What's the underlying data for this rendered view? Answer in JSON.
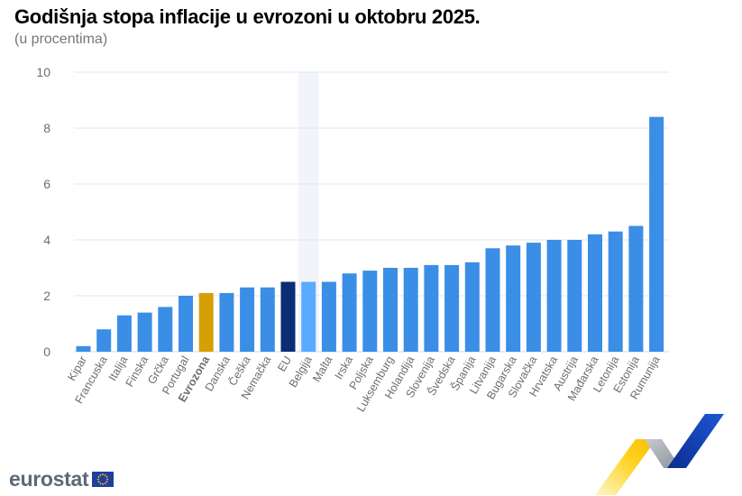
{
  "title": "Godišnja stopa inflacije u evrozoni u oktobru 2025.",
  "subtitle": "(u procentima)",
  "chart_data": {
    "type": "bar",
    "title": "Godišnja stopa inflacije u evrozoni u oktobru 2025.",
    "subtitle": "(u procentima)",
    "xlabel": "",
    "ylabel": "",
    "ylim": [
      0,
      10
    ],
    "yticks": [
      0,
      2,
      4,
      6,
      8,
      10
    ],
    "grid": true,
    "legend": "none",
    "categories": [
      "Kipar",
      "Francuska",
      "Italija",
      "Finska",
      "Grčka",
      "Portugal",
      "Evrozona",
      "Danska",
      "Češka",
      "Nemačka",
      "EU",
      "Belgija",
      "Malta",
      "Irska",
      "Poljska",
      "Luksemburg",
      "Holandija",
      "Slovenija",
      "Švedska",
      "Španija",
      "Litvanija",
      "Bugarska",
      "Slovačka",
      "Hrvatska",
      "Austrija",
      "Mađarska",
      "Letonija",
      "Estonija",
      "Rumunija"
    ],
    "values": [
      0.2,
      0.8,
      1.3,
      1.4,
      1.6,
      2.0,
      2.1,
      2.1,
      2.3,
      2.3,
      2.5,
      2.5,
      2.5,
      2.8,
      2.9,
      3.0,
      3.0,
      3.1,
      3.1,
      3.2,
      3.7,
      3.8,
      3.9,
      4.0,
      4.0,
      4.2,
      4.3,
      4.5,
      8.4
    ],
    "bold_categories": [
      "Evrozona"
    ],
    "highlighted_category": "Belgija",
    "colors": {
      "default": "#3a8ee6",
      "Evrozona": "#d4a004",
      "EU": "#0b2d73",
      "Belgija": "#5aaaff",
      "hover_band": "#f2f4fb",
      "grid": "#e3e6ec",
      "tick_label": "#6d6d6d"
    }
  },
  "footer": {
    "logo_text": "eurostat"
  }
}
